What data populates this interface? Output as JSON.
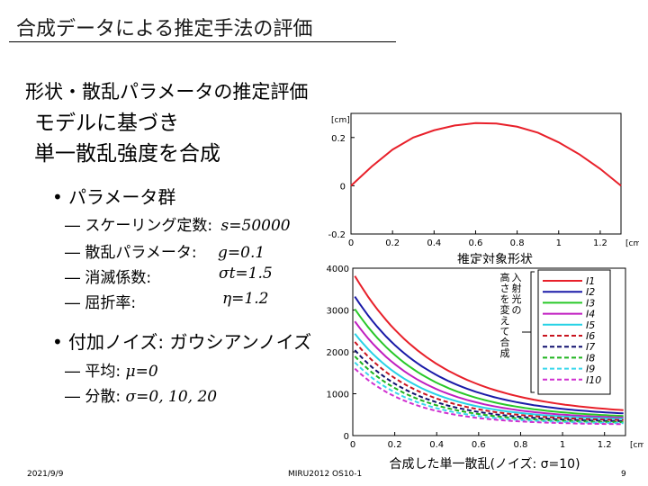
{
  "title": "合成データによる推定手法の評価",
  "subtitle": "形状・散乱パラメータの推定評価",
  "intro": [
    "モデルに基づき",
    "単一散乱強度を合成"
  ],
  "bullet_params": {
    "heading": "パラメータ群",
    "items": [
      {
        "label": "― スケーリング定数:",
        "value": "s=50000"
      },
      {
        "label": "― 散乱パラメータ:",
        "value": "g=0.1"
      },
      {
        "label": "― 消滅係数:",
        "value": "σt=1.5"
      },
      {
        "label": "― 屈折率:",
        "value": "η=1.2"
      }
    ]
  },
  "bullet_noise": {
    "heading": "付加ノイズ: ガウシアンノイズ",
    "items": [
      {
        "label": "― 平均: ",
        "value": "μ=0"
      },
      {
        "label": "― 分散: ",
        "value": "σ=0, 10, 20"
      }
    ]
  },
  "footer": {
    "date": "2021/9/9",
    "conf": "MIRU2012 OS10-1",
    "page": "9"
  },
  "chart_data": [
    {
      "type": "line",
      "xlabel": "推定対象形状",
      "unit_y": "[cm]",
      "unit_x": "[cm]",
      "xlim": [
        0,
        1.3
      ],
      "ylim": [
        -0.2,
        0.3
      ],
      "xticks": [
        "0",
        "0.2",
        "0.4",
        "0.6",
        "0.8",
        "1",
        "1.2"
      ],
      "yticks": [
        "0.2",
        "0",
        "-0.2"
      ],
      "series": [
        {
          "color": "#e8202a",
          "x": [
            0,
            0.1,
            0.2,
            0.3,
            0.4,
            0.5,
            0.6,
            0.7,
            0.8,
            0.9,
            1.0,
            1.1,
            1.2,
            1.3
          ],
          "y": [
            0,
            0.08,
            0.15,
            0.2,
            0.23,
            0.25,
            0.26,
            0.258,
            0.245,
            0.22,
            0.18,
            0.13,
            0.07,
            0
          ]
        }
      ]
    },
    {
      "type": "line",
      "xlabel": "合成した単一散乱(ノイズ: σ=10)",
      "unit_x": "[cm]",
      "xlim": [
        0,
        1.3
      ],
      "ylim": [
        0,
        4000
      ],
      "xticks": [
        "0",
        "0.2",
        "0.4",
        "0.6",
        "0.8",
        "1",
        "1.2"
      ],
      "yticks": [
        "4000",
        "3000",
        "2000",
        "1000",
        "0"
      ],
      "annotation": "入射光の高さを変えて合成",
      "legend_position": "right",
      "series": [
        {
          "name": "I1",
          "color": "#e8202a",
          "dashed": false,
          "a0": 3900,
          "k": 2.55,
          "floor": 480
        },
        {
          "name": "I2",
          "color": "#1a1aa8",
          "dashed": false,
          "a0": 3400,
          "k": 2.7,
          "floor": 440
        },
        {
          "name": "I3",
          "color": "#28c828",
          "dashed": false,
          "a0": 3100,
          "k": 2.85,
          "floor": 400
        },
        {
          "name": "I4",
          "color": "#c01ec0",
          "dashed": false,
          "a0": 2800,
          "k": 3.0,
          "floor": 380
        },
        {
          "name": "I5",
          "color": "#28d2e6",
          "dashed": false,
          "a0": 2500,
          "k": 3.1,
          "floor": 360
        },
        {
          "name": "I6",
          "color": "#c8141e",
          "dashed": true,
          "a0": 2300,
          "k": 3.2,
          "floor": 340
        },
        {
          "name": "I7",
          "color": "#10106e",
          "dashed": true,
          "a0": 2100,
          "k": 3.3,
          "floor": 320
        },
        {
          "name": "I8",
          "color": "#1eb41e",
          "dashed": true,
          "a0": 1950,
          "k": 3.4,
          "floor": 300
        },
        {
          "name": "I9",
          "color": "#38d8ec",
          "dashed": true,
          "a0": 1800,
          "k": 3.5,
          "floor": 280
        },
        {
          "name": "I10",
          "color": "#d030d0",
          "dashed": true,
          "a0": 1650,
          "k": 3.6,
          "floor": 260
        }
      ]
    }
  ]
}
